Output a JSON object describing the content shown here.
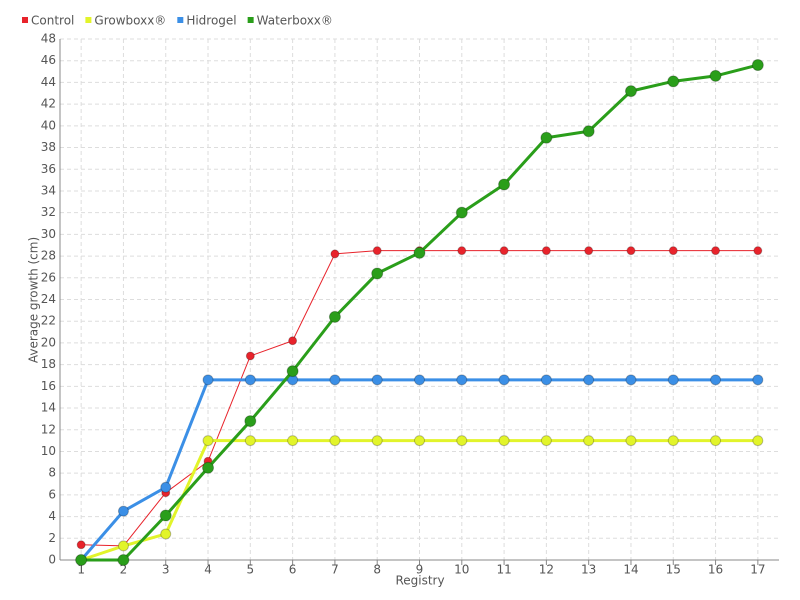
{
  "chart_data": {
    "type": "line",
    "x_label": "Registry",
    "y_label": "Average growth (cm)",
    "categories": [
      "1",
      "2",
      "3",
      "4",
      "5",
      "6",
      "7",
      "8",
      "9",
      "10",
      "11",
      "12",
      "13",
      "14",
      "15",
      "16",
      "17"
    ],
    "series": [
      {
        "name": "Control",
        "color": "#e8232b",
        "values": [
          1.4,
          1.3,
          6.2,
          9.1,
          18.8,
          20.2,
          28.2,
          28.5,
          28.5,
          28.5,
          28.5,
          28.5,
          28.5,
          28.5,
          28.5,
          28.5,
          28.5
        ]
      },
      {
        "name": "Growboxx®",
        "color": "#e2f42a",
        "values": [
          0,
          1.3,
          2.4,
          11.0,
          11.0,
          11.0,
          11.0,
          11.0,
          11.0,
          11.0,
          11.0,
          11.0,
          11.0,
          11.0,
          11.0,
          11.0,
          11.0
        ]
      },
      {
        "name": "Hidrogel",
        "color": "#3b8fe6",
        "values": [
          0,
          4.5,
          6.7,
          16.6,
          16.6,
          16.6,
          16.6,
          16.6,
          16.6,
          16.6,
          16.6,
          16.6,
          16.6,
          16.6,
          16.6,
          16.6,
          16.6
        ]
      },
      {
        "name": "Waterboxx®",
        "color": "#2a9e1a",
        "values": [
          0,
          0,
          4.1,
          8.5,
          12.8,
          17.4,
          22.4,
          26.4,
          28.3,
          32.0,
          34.6,
          38.9,
          39.5,
          43.2,
          44.1,
          44.6,
          45.6
        ]
      }
    ],
    "ylim": [
      0,
      48
    ],
    "yticks": [
      0,
      2,
      4,
      6,
      8,
      10,
      12,
      14,
      16,
      18,
      20,
      22,
      24,
      26,
      28,
      30,
      32,
      34,
      36,
      38,
      40,
      42,
      44,
      46,
      48
    ],
    "grid": true,
    "legend": "top-left"
  }
}
